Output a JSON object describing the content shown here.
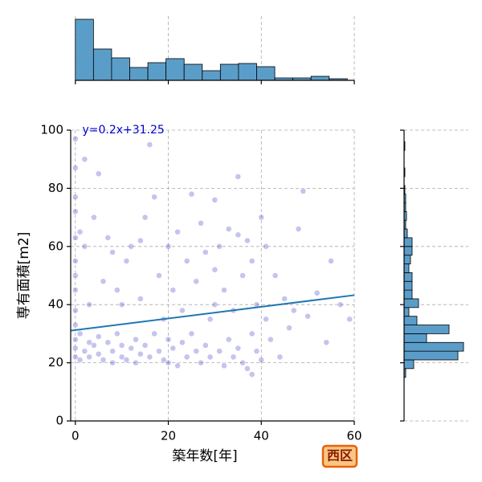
{
  "chart_data": {
    "type": "scatter",
    "x_label": "築年数[年]",
    "y_label": "専有面積[m2]",
    "annotation": "y=0.2x+31.25",
    "badge": "西区",
    "color": "#3a3ac8",
    "line_color": "#1f77b4",
    "hist_color": "#5b9dc9",
    "grid": true,
    "xlim": [
      -1,
      60
    ],
    "ylim": [
      0,
      100
    ],
    "xticks": [
      0,
      20,
      40,
      60
    ],
    "yticks": [
      0,
      20,
      40,
      60,
      80,
      100
    ],
    "fit": {
      "slope": 0.2,
      "intercept": 31.25
    },
    "x": [
      0,
      0,
      0,
      0,
      0,
      0,
      0,
      0,
      0,
      0,
      0,
      0,
      0,
      1,
      1,
      2,
      2,
      2,
      3,
      3,
      3,
      4,
      4,
      5,
      5,
      5,
      6,
      6,
      7,
      7,
      8,
      8,
      8,
      9,
      9,
      10,
      10,
      10,
      11,
      11,
      12,
      12,
      13,
      13,
      14,
      14,
      15,
      15,
      16,
      16,
      17,
      17,
      18,
      18,
      19,
      19,
      20,
      20,
      20,
      21,
      21,
      22,
      22,
      23,
      23,
      24,
      24,
      25,
      25,
      26,
      26,
      27,
      27,
      28,
      28,
      29,
      29,
      30,
      30,
      31,
      31,
      32,
      32,
      33,
      33,
      34,
      34,
      35,
      35,
      36,
      36,
      37,
      37,
      38,
      38,
      38,
      39,
      39,
      40,
      40,
      41,
      41,
      42,
      43,
      44,
      45,
      46,
      47,
      48,
      49,
      50,
      52,
      54,
      55,
      57,
      59,
      1,
      14,
      30,
      35
    ],
    "values": [
      97,
      87,
      77,
      72,
      63,
      55,
      45,
      38,
      28,
      22,
      25,
      33,
      50,
      30,
      21,
      90,
      24,
      60,
      27,
      22,
      40,
      26,
      70,
      85,
      29,
      23,
      48,
      21,
      63,
      27,
      24,
      58,
      20,
      30,
      45,
      22,
      26,
      40,
      55,
      21,
      60,
      25,
      28,
      20,
      42,
      23,
      70,
      26,
      95,
      22,
      77,
      30,
      24,
      50,
      35,
      21,
      60,
      28,
      20,
      45,
      25,
      65,
      19,
      38,
      27,
      55,
      22,
      78,
      30,
      24,
      48,
      20,
      68,
      26,
      58,
      35,
      22,
      76,
      40,
      24,
      60,
      19,
      45,
      28,
      66,
      22,
      38,
      84,
      25,
      50,
      20,
      62,
      18,
      30,
      55,
      16,
      40,
      24,
      70,
      21,
      60,
      35,
      28,
      50,
      22,
      42,
      32,
      38,
      66,
      79,
      36,
      44,
      27,
      55,
      40,
      35,
      65,
      62,
      52,
      64
    ],
    "x_hist": {
      "bins": [
        0,
        3.9,
        7.8,
        11.7,
        15.6,
        19.5,
        23.4,
        27.3,
        31.2,
        35.1,
        39,
        42.9,
        46.8,
        50.7,
        54.6,
        58.5
      ],
      "counts": [
        76,
        39,
        28,
        16,
        22,
        27,
        20,
        12,
        20,
        21,
        17,
        3,
        3,
        5,
        2
      ],
      "lim": [
        0,
        80
      ]
    },
    "y_hist": {
      "bins": [
        15,
        18,
        21,
        24,
        27,
        30,
        33,
        36,
        39,
        42,
        45,
        48,
        51,
        54,
        57,
        60,
        63,
        66,
        69,
        72,
        75,
        78,
        81,
        84,
        87,
        90,
        93,
        96,
        99
      ],
      "counts": [
        2,
        12,
        67,
        74,
        28,
        56,
        16,
        6,
        18,
        10,
        10,
        10,
        6,
        8,
        10,
        10,
        4,
        2,
        3,
        2,
        2,
        1,
        0,
        1,
        0,
        0,
        1,
        0
      ],
      "lim": [
        0,
        80
      ]
    }
  }
}
